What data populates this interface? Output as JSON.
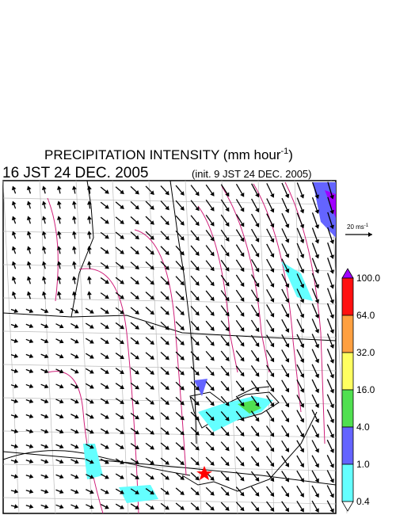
{
  "title": {
    "main": "PRECIPITATION INTENSITY (mm hour",
    "sup": "-1",
    "close": ")"
  },
  "valid_time": "16 JST 24 DEC. 2005",
  "init_time": "(init. 9 JST 24 DEC. 2005)",
  "vector_legend": {
    "label": "20 ms",
    "sup": "-1"
  },
  "colorbar": {
    "labels": [
      "100.0",
      "64.0",
      "32.0",
      "16.0",
      "4.0",
      "1.0",
      "0.4"
    ],
    "colors": [
      "#a000ff",
      "#ff1010",
      "#ffa040",
      "#ffff60",
      "#50e050",
      "#6464ff",
      "#64ffff",
      "#ffffff"
    ]
  }
}
